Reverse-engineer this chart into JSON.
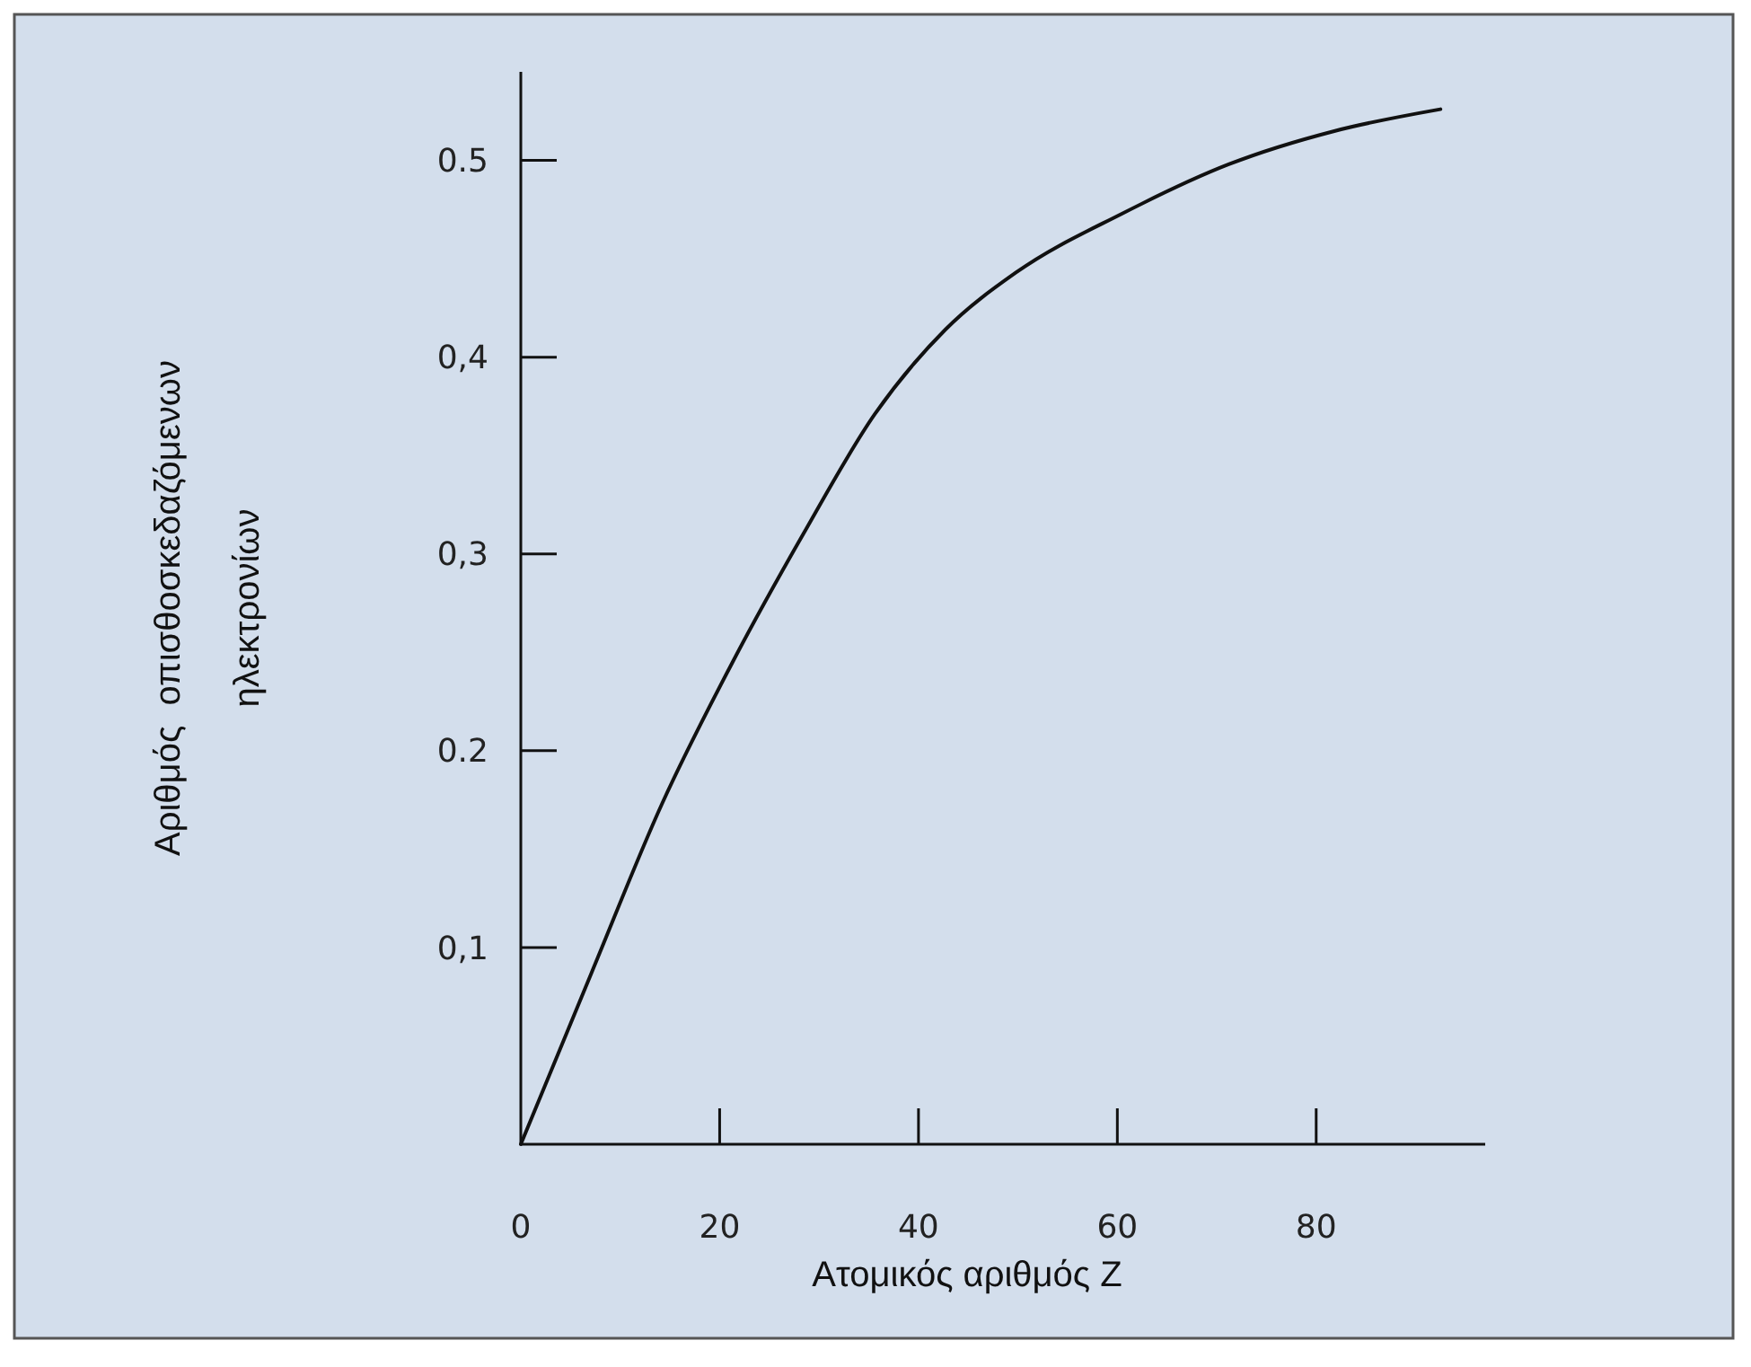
{
  "chart_data": {
    "type": "line",
    "xlabel": "Ατομικός αριθμός Z",
    "ylabel": "Αριθμός  οπισθοσκεδαζόμενων\nηλεκτρονίων",
    "x": [
      0,
      7.1,
      14.2,
      21.3,
      28.4,
      35.6,
      42.7,
      49.8,
      60.5,
      71.2,
      81.9,
      92.5
    ],
    "series": [
      {
        "color": "#111111",
        "values": [
          0,
          0.087,
          0.173,
          0.245,
          0.31,
          0.371,
          0.414,
          0.443,
          0.473,
          0.498,
          0.515,
          0.526
        ]
      }
    ],
    "xlim": [
      0,
      97
    ],
    "ylim": [
      0,
      0.545
    ],
    "xticks": [
      0,
      20,
      40,
      60,
      80
    ],
    "yticks": [
      {
        "value": 0.1,
        "label": "0,1"
      },
      {
        "value": 0.2,
        "label": "0.2"
      },
      {
        "value": 0.3,
        "label": "0,3"
      },
      {
        "value": 0.4,
        "label": "0,4"
      },
      {
        "value": 0.5,
        "label": "0.5"
      }
    ],
    "grid": false,
    "marker": "none",
    "line_style": "solid"
  }
}
